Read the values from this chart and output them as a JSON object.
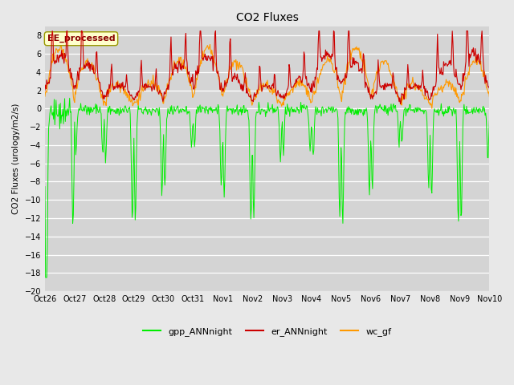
{
  "title": "CO2 Fluxes",
  "ylabel": "CO2 Fluxes (urology/m2/s)",
  "ylim": [
    -20,
    9
  ],
  "yticks": [
    -20,
    -18,
    -16,
    -14,
    -12,
    -10,
    -8,
    -6,
    -4,
    -2,
    0,
    2,
    4,
    6,
    8
  ],
  "background_color": "#e8e8e8",
  "plot_bg_color": "#d4d4d4",
  "line_colors": {
    "gpp": "#00ee00",
    "er": "#cc0000",
    "wc": "#ff9900"
  },
  "legend_labels": [
    "gpp_ANNnight",
    "er_ANNnight",
    "wc_gf"
  ],
  "annotation_text": "EE_processed",
  "annotation_color": "#880000",
  "annotation_bg": "#ffffcc",
  "n_days": 15,
  "seed": 42,
  "tick_labels": [
    "Oct 26",
    "Oct 27",
    "Oct 28",
    "Oct 29",
    "Oct 30",
    "Oct 31",
    "Nov 1",
    "Nov 2",
    "Nov 3",
    "Nov 4",
    "Nov 5",
    "Nov 6",
    "Nov 7",
    "Nov 8",
    "Nov 9",
    "Nov 10"
  ],
  "figsize": [
    6.4,
    4.8
  ],
  "dpi": 100
}
